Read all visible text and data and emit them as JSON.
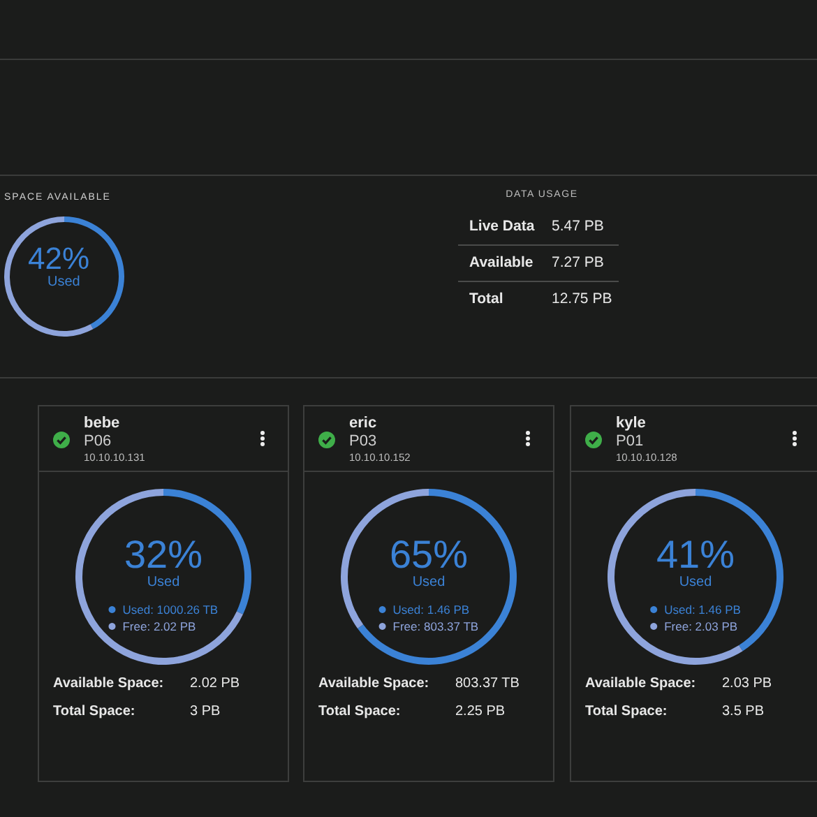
{
  "chart_data": [
    {
      "type": "donut",
      "title": "SPACE AVAILABLE",
      "categories": [
        null,
        null
      ],
      "values": [
        42,
        58
      ],
      "colors": [
        "#3b82d6",
        "#8ea4dc"
      ],
      "value_labels": [
        "42%",
        null
      ],
      "annotations": [
        "Used"
      ]
    },
    {
      "type": "other",
      "title": "DATA USAGE",
      "annotations": [
        "Live Data",
        "5.47 PB",
        "Available",
        "7.27 PB",
        "Total",
        "12.75 PB"
      ]
    },
    {
      "type": "donut",
      "title": "bebe",
      "subtitle": "P06",
      "categories": [
        "Used: 1000.26 TB",
        "Free: 2.02 PB"
      ],
      "values": [
        32,
        68
      ],
      "colors": [
        "#3b82d6",
        "#8ea4dc"
      ],
      "value_labels": [
        "32%",
        null
      ],
      "legend": "center",
      "annotations": [
        "10.10.10.131",
        "Used",
        "Available Space:",
        "2.02 PB",
        "Total Space:",
        "3 PB"
      ]
    },
    {
      "type": "donut",
      "title": "eric",
      "subtitle": "P03",
      "categories": [
        "Used: 1.46 PB",
        "Free: 803.37 TB"
      ],
      "values": [
        65,
        35
      ],
      "colors": [
        "#3b82d6",
        "#8ea4dc"
      ],
      "value_labels": [
        "65%",
        null
      ],
      "legend": "center",
      "annotations": [
        "10.10.10.152",
        "Used",
        "Available Space:",
        "803.37 TB",
        "Total Space:",
        "2.25 PB"
      ]
    },
    {
      "type": "donut",
      "title": "kyle",
      "subtitle": "P01",
      "categories": [
        "Used: 1.46 PB",
        "Free: 2.03 PB"
      ],
      "values": [
        41,
        59
      ],
      "colors": [
        "#3b82d6",
        "#8ea4dc"
      ],
      "value_labels": [
        "41%",
        null
      ],
      "legend": "center",
      "annotations": [
        "10.10.10.128",
        "Used",
        "Available Space:",
        "2.03 PB",
        "Total Space:",
        "3.5 PB"
      ]
    }
  ]
}
